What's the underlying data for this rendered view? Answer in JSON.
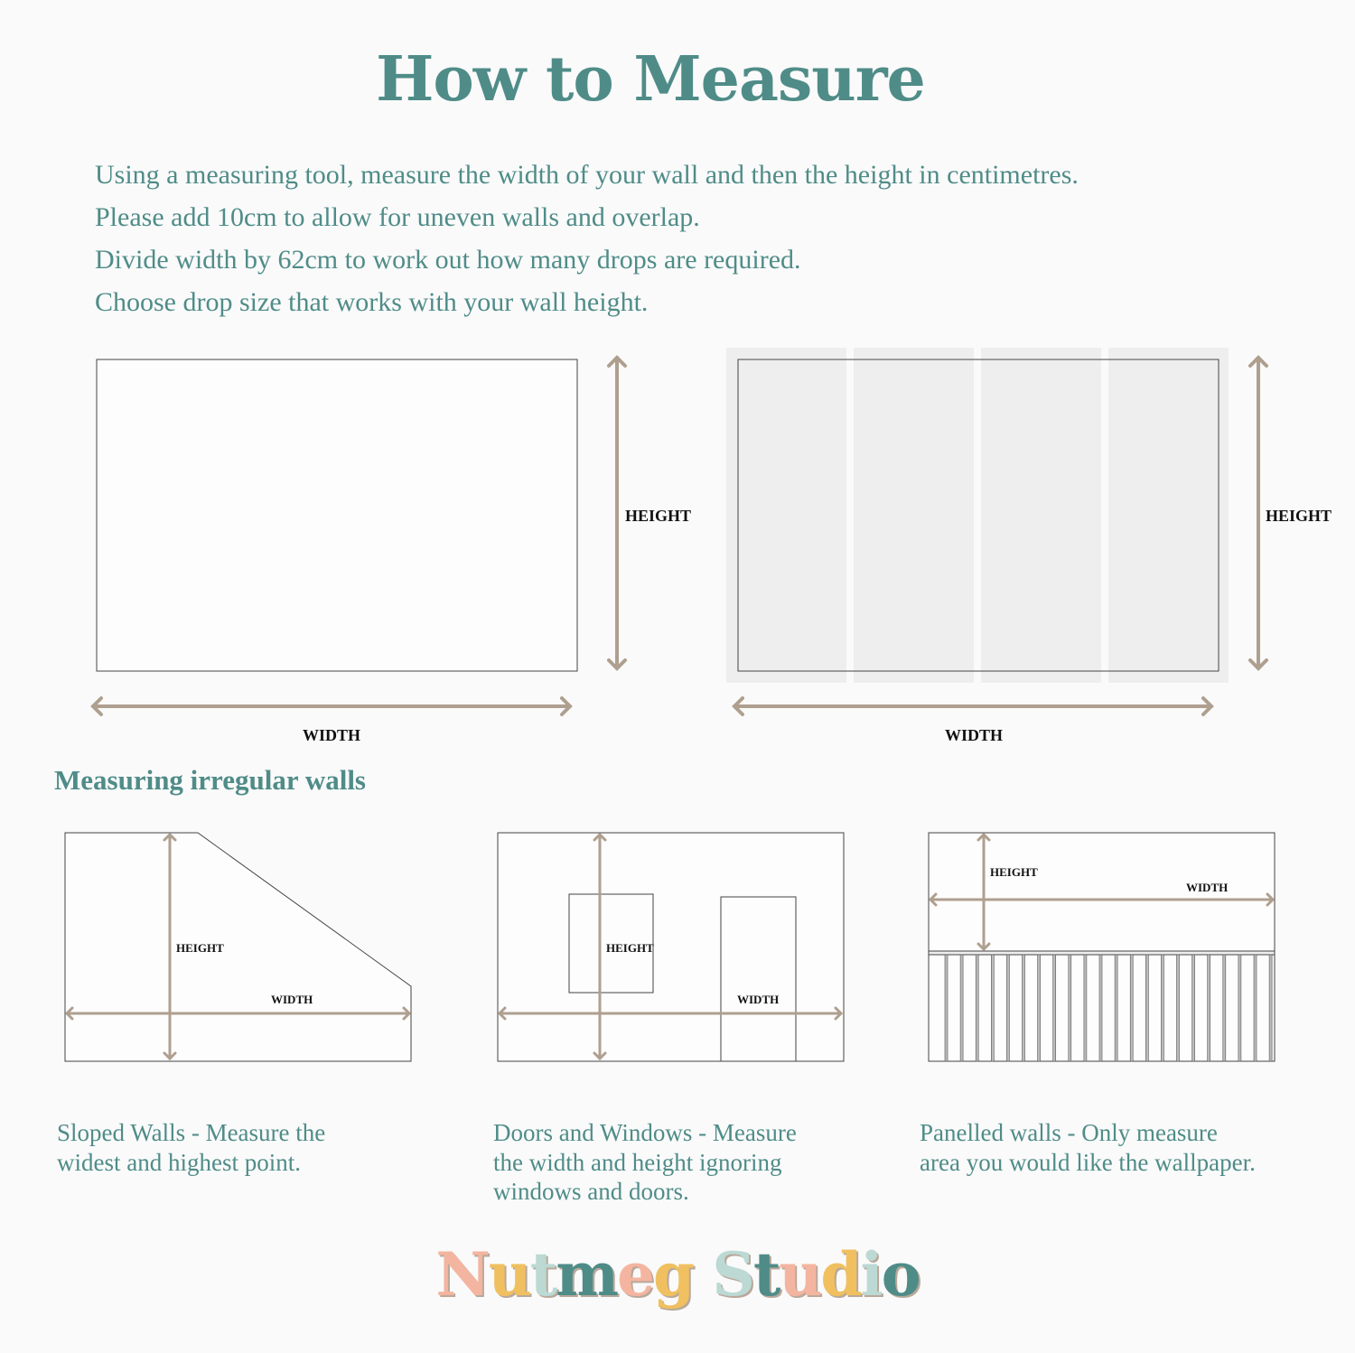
{
  "header": {
    "title": "How to Measure"
  },
  "intro": [
    "Using a measuring tool, measure the width of your wall and then the height in centimetres.",
    "Please add 10cm to allow for uneven walls and overlap.",
    "Divide width by 62cm to work out how many drops are required.",
    "Choose drop size that works with your wall height."
  ],
  "labels": {
    "height": "HEIGHT",
    "width": "WIDTH"
  },
  "irregular": {
    "title": "Measuring irregular walls",
    "captions": [
      [
        "Sloped Walls - Measure the",
        "widest and highest point."
      ],
      [
        "Doors and Windows - Measure",
        "the width and height ignoring",
        "windows and doors."
      ],
      [
        "Panelled walls - Only measure",
        "area you would like the wallpaper."
      ]
    ]
  },
  "logo": {
    "text": "Nutmeg Studio",
    "letters": [
      "N",
      "u",
      "t",
      "m",
      "e",
      "g",
      " ",
      "S",
      "t",
      "u",
      "d",
      "i",
      "o"
    ]
  },
  "colors": {
    "teal": "#4f8c88",
    "arrow": "#ae9f8f",
    "drop": "#eeeeee",
    "logo": [
      "#f4b5a0",
      "#f0c060",
      "#bcd9d4",
      "#4f8c88"
    ]
  }
}
